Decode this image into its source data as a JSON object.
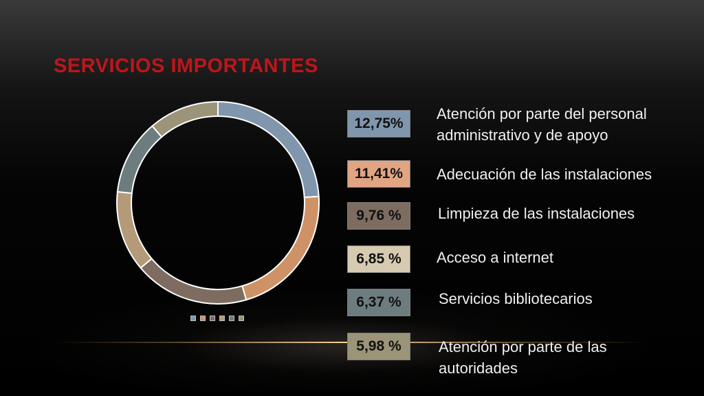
{
  "title": "SERVICIOS IMPORTANTES",
  "colors": {
    "title": "#c0151a",
    "slices": [
      "#8096ad",
      "#cf9266",
      "#7e6c61",
      "#b49a78",
      "#6d7d7f",
      "#9b9478"
    ],
    "box_fills": [
      "#8096ad",
      "#e1a583",
      "#7e6c61",
      "#d6cbb1",
      "#6d7d7f",
      "#9b9478"
    ]
  },
  "chart_data": {
    "type": "pie",
    "variant": "donut",
    "categories": [
      "Atención por parte del personal administrativo y de apoyo",
      "Adecuación de las instalaciones",
      "Limpieza de las instalaciones",
      "Acceso a internet",
      "Servicios bibliotecarios",
      "Atención por parte de las autoridades"
    ],
    "values": [
      12.75,
      11.41,
      9.76,
      6.85,
      6.37,
      5.98
    ],
    "value_labels": [
      "12,75%",
      "11,41%",
      "9,76 %",
      "6,85 %",
      "6,37 %",
      "5,98 %"
    ],
    "legend": "bottom"
  },
  "items": [
    {
      "pct": "12,75%",
      "label_lines": [
        "Atención por parte del personal",
        "administrativo y de apoyo"
      ]
    },
    {
      "pct": "11,41%",
      "label_lines": [
        "Adecuación de las instalaciones"
      ]
    },
    {
      "pct": "9,76 %",
      "label_lines": [
        "Limpieza de las instalaciones"
      ]
    },
    {
      "pct": "6,85 %",
      "label_lines": [
        "Acceso a internet"
      ]
    },
    {
      "pct": "6,37 %",
      "label_lines": [
        "Servicios bibliotecarios"
      ]
    },
    {
      "pct": "5,98 %",
      "label_lines": [
        "Atención por parte de las",
        "autoridades"
      ]
    }
  ]
}
